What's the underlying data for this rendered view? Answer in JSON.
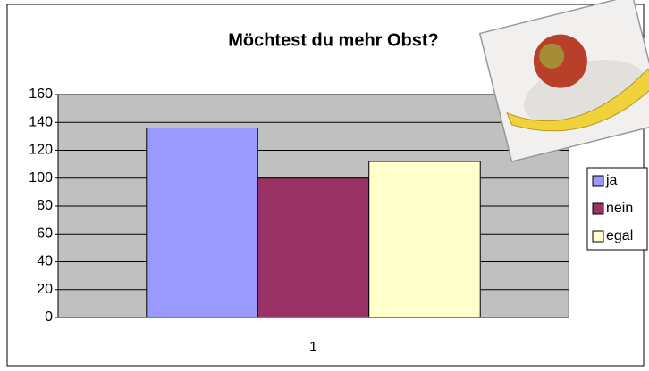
{
  "chart_data": {
    "type": "bar",
    "title": "Möchtest du mehr Obst?",
    "categories": [
      "1"
    ],
    "series": [
      {
        "name": "ja",
        "color": "#9999ff",
        "values": [
          136
        ]
      },
      {
        "name": "nein",
        "color": "#993366",
        "values": [
          100
        ]
      },
      {
        "name": "egal",
        "color": "#ffffcc",
        "values": [
          112
        ]
      }
    ],
    "ylim": [
      0,
      160
    ],
    "yticks": [
      0,
      20,
      40,
      60,
      80,
      100,
      120,
      140,
      160
    ],
    "grid": true,
    "legend": "right"
  }
}
